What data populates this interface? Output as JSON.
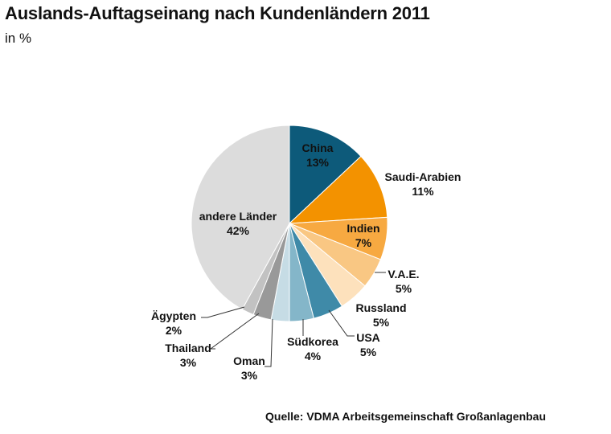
{
  "title": "Auslands-Auftagseinang nach Kundenländern 2011",
  "subtitle": "in %",
  "source": "Quelle: VDMA Arbeitsgemeinschaft Großanlagenbau",
  "chart_data": {
    "type": "pie",
    "title": "Auslands-Auftagseinang nach Kundenländern 2011",
    "unit": "in %",
    "slices": [
      {
        "label": "China",
        "value": 13,
        "value_label": "13%",
        "color": "#0d5a7a",
        "label_color": "#111111"
      },
      {
        "label": "Saudi-Arabien",
        "value": 11,
        "value_label": "11%",
        "color": "#f39200",
        "label_color": "#111111"
      },
      {
        "label": "Indien",
        "value": 7,
        "value_label": "7%",
        "color": "#f7a941",
        "label_color": "#111111"
      },
      {
        "label": "V.A.E.",
        "value": 5,
        "value_label": "5%",
        "color": "#f9c783",
        "label_color": "#111111"
      },
      {
        "label": "Russland",
        "value": 5,
        "value_label": "5%",
        "color": "#fde1bc",
        "label_color": "#111111"
      },
      {
        "label": "USA",
        "value": 5,
        "value_label": "5%",
        "color": "#3f8aa8",
        "label_color": "#111111"
      },
      {
        "label": "Südkorea",
        "value": 4,
        "value_label": "4%",
        "color": "#84b6c9",
        "label_color": "#111111"
      },
      {
        "label": "Oman",
        "value": 3,
        "value_label": "3%",
        "color": "#c6dce5",
        "label_color": "#111111"
      },
      {
        "label": "Thailand",
        "value": 3,
        "value_label": "3%",
        "color": "#999999",
        "label_color": "#111111"
      },
      {
        "label": "Ägypten",
        "value": 2,
        "value_label": "2%",
        "color": "#c2c2c2",
        "label_color": "#111111"
      },
      {
        "label": "andere Länder",
        "value": 42,
        "value_label": "42%",
        "color": "#dcdcdc",
        "label_color": "#111111"
      }
    ]
  }
}
